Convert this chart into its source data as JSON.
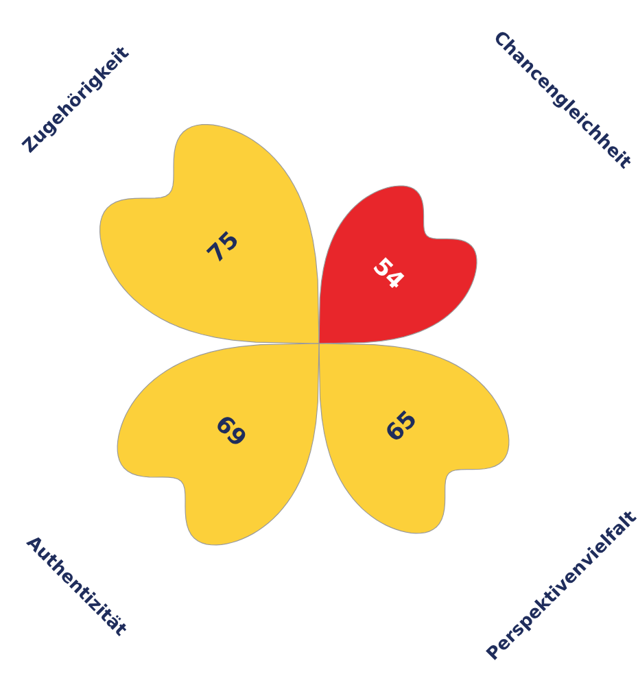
{
  "chart_data": {
    "type": "other",
    "categories": [
      "Zugehörigkeit",
      "Chancengleichheit",
      "Perspektivenvielfalt",
      "Authentizität"
    ],
    "values": [
      75,
      54,
      65,
      69
    ],
    "colors": [
      "#fcd03a",
      "#e8262b",
      "#fcd03a",
      "#fcd03a"
    ],
    "data_labels": true
  }
}
